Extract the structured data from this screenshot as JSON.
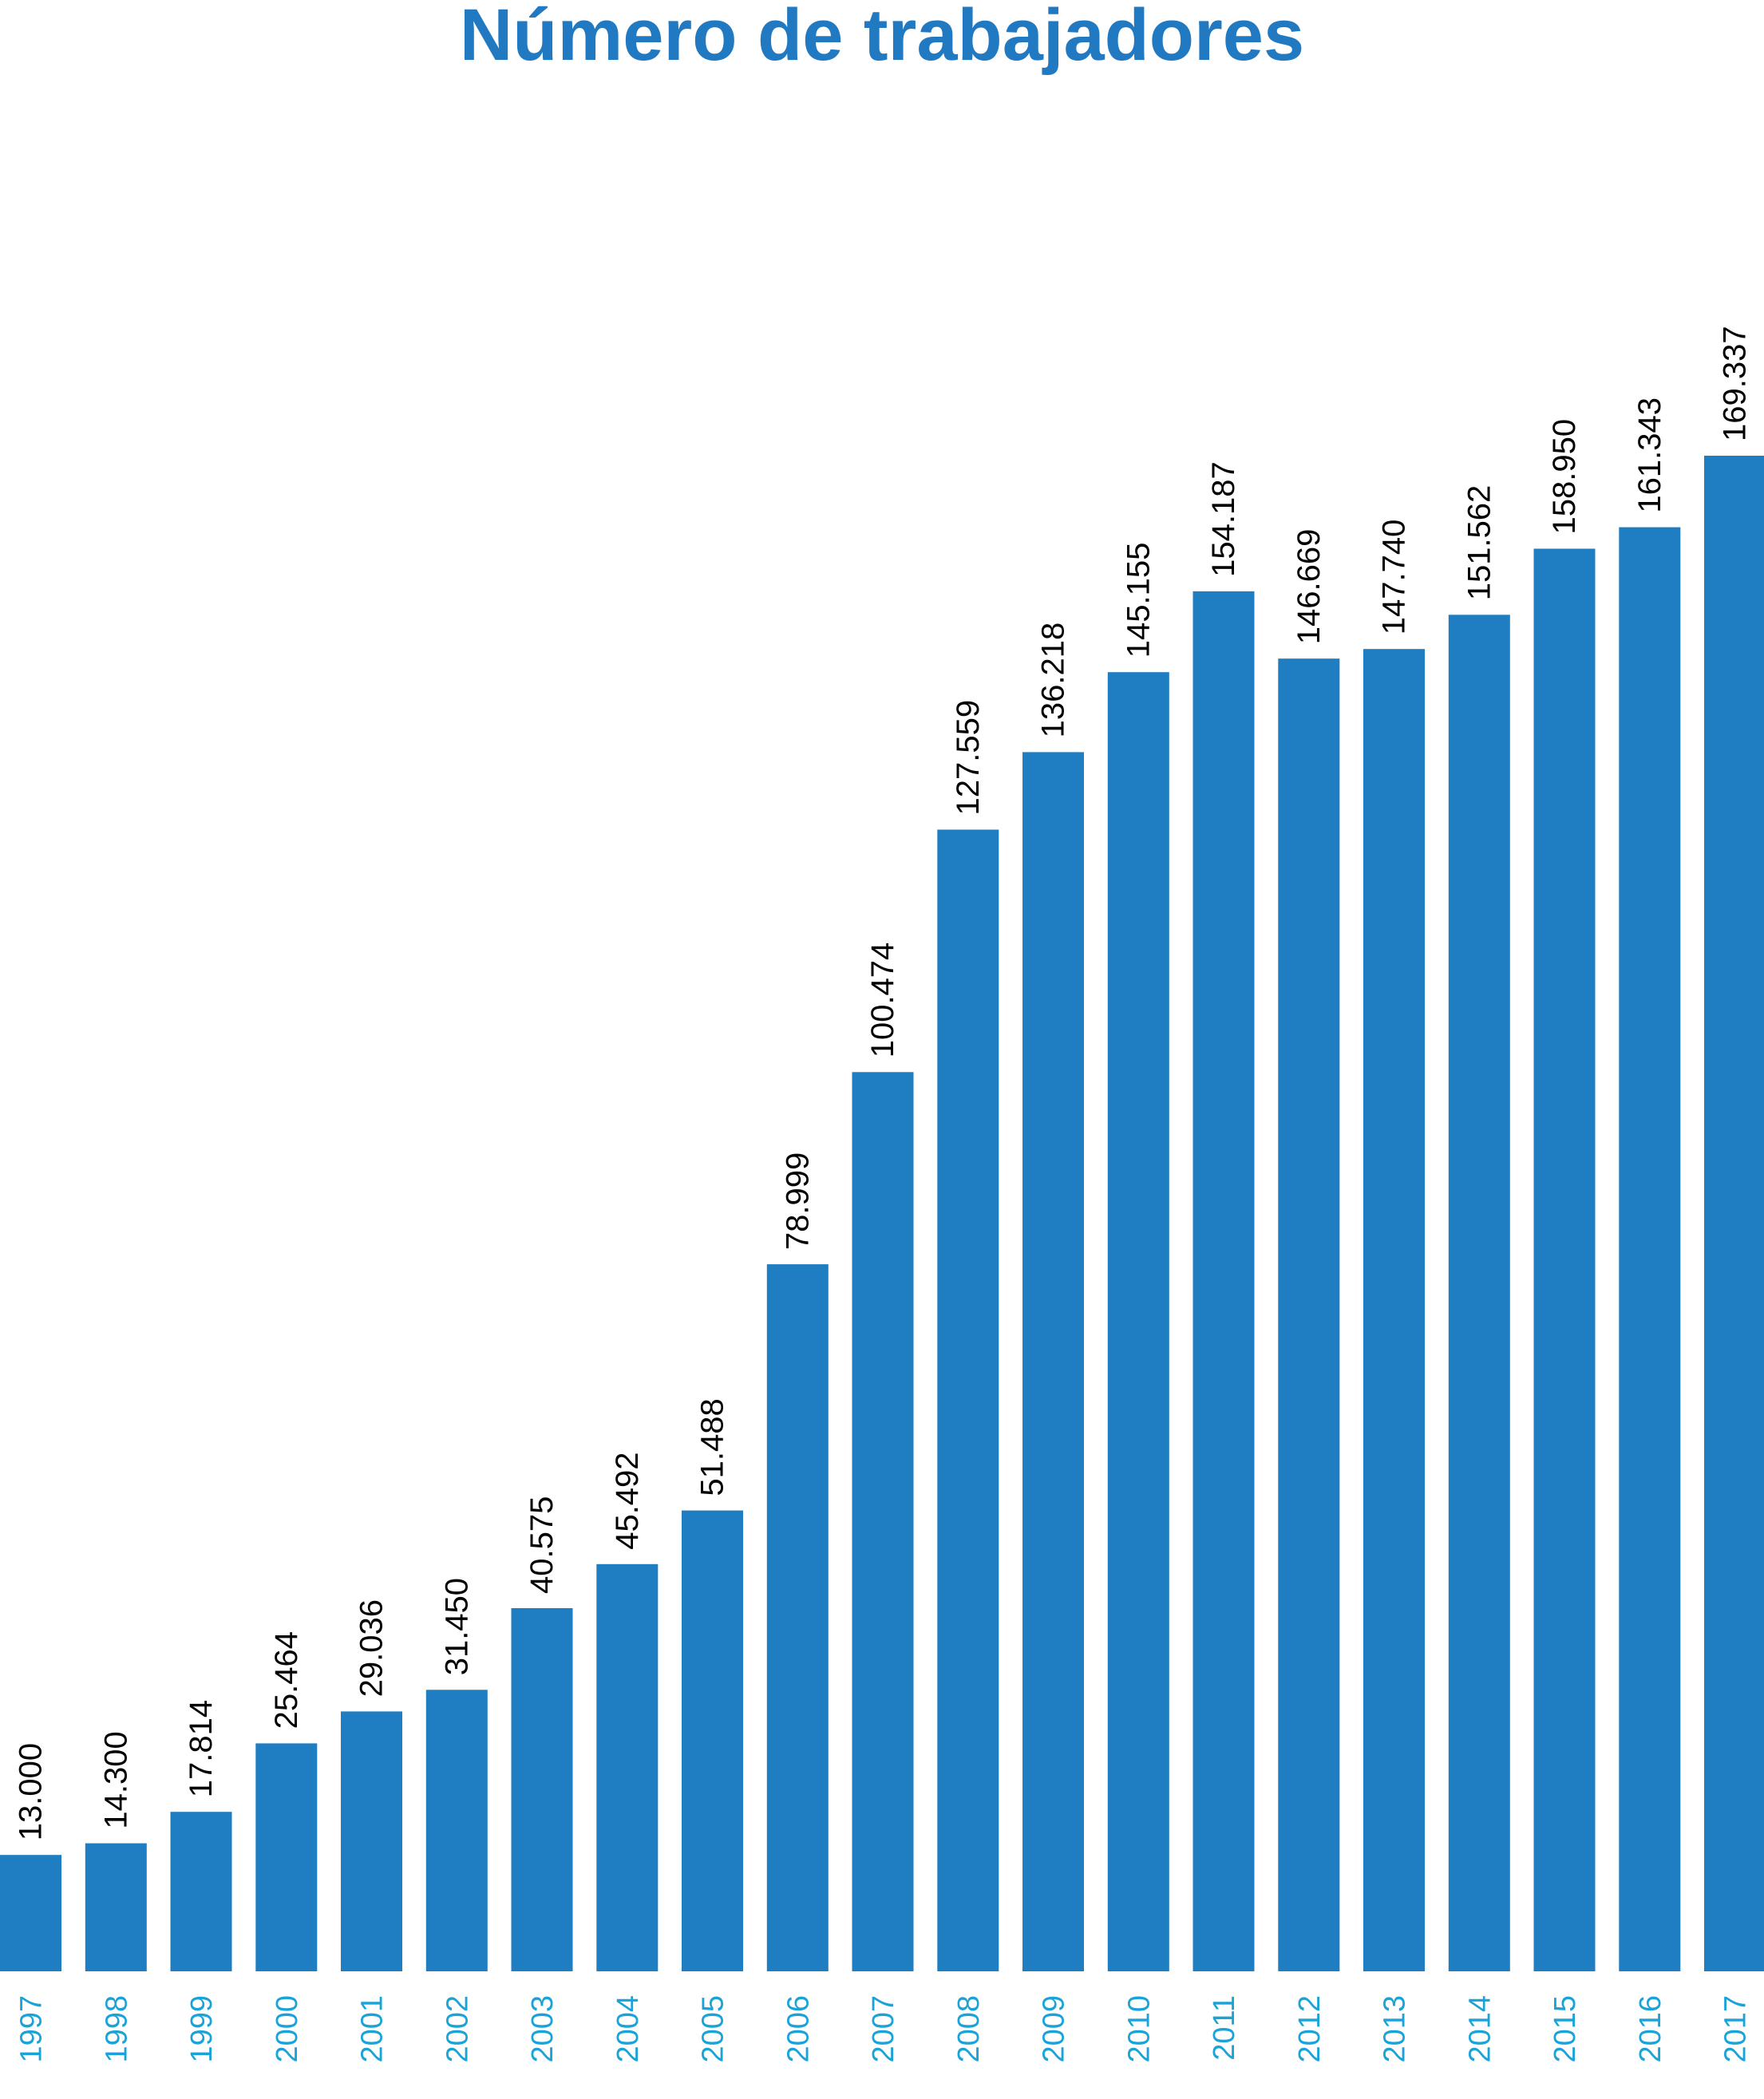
{
  "colors": {
    "bar": "#1f7dc2",
    "title": "#2079c1",
    "tick_label": "#1aa3d9",
    "value_label": "#000000"
  },
  "chart_data": {
    "type": "bar",
    "title": "Número de trabajadores",
    "xlabel": "",
    "ylabel": "",
    "ylim": [
      0,
      190000
    ],
    "grid": false,
    "legend": "none",
    "categories": [
      "1997",
      "1998",
      "1999",
      "2000",
      "2001",
      "2002",
      "2003",
      "2004",
      "2005",
      "2006",
      "2007",
      "2008",
      "2009",
      "2010",
      "2011",
      "2012",
      "2013",
      "2014",
      "2015",
      "2016",
      "2017"
    ],
    "values": [
      13000,
      14300,
      17814,
      25464,
      29036,
      31450,
      40575,
      45492,
      51488,
      78999,
      100474,
      127559,
      136218,
      145155,
      154187,
      146669,
      147740,
      151562,
      158950,
      161343,
      169337
    ],
    "data_labels": [
      "13.000",
      "14.300",
      "17.814",
      "25.464",
      "29.036",
      "31.450",
      "40.575",
      "45.492",
      "51.488",
      "78.999",
      "100.474",
      "127.559",
      "136.218",
      "145.155",
      "154.187",
      "146.669",
      "147.740",
      "151.562",
      "158.950",
      "161.343",
      "169.337"
    ]
  }
}
